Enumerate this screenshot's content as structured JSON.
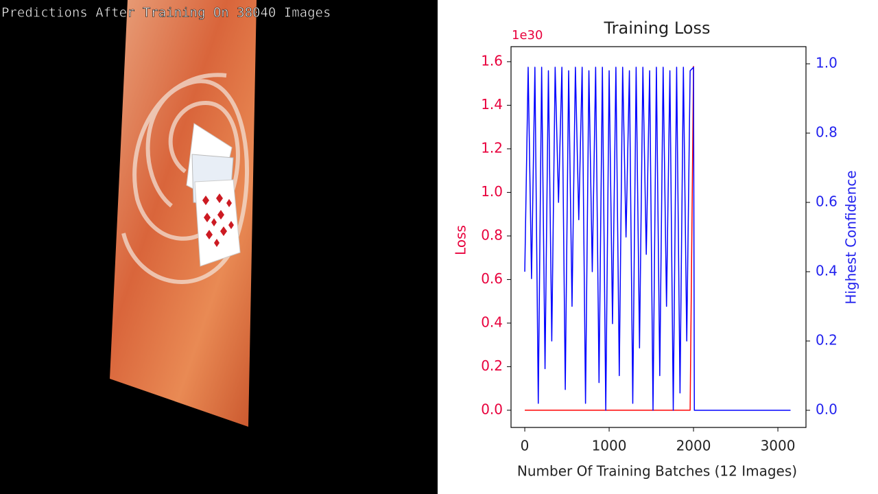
{
  "overlay_text": "Predictions After Training On 38040 Images",
  "chart_data": {
    "type": "line",
    "title": "Training Loss",
    "xlabel": "Number Of Training Batches (12 Images)",
    "ylabel": "Loss",
    "y2label": "Highest Confidence",
    "y_multiplier": "1e30",
    "x": [
      0,
      40,
      80,
      120,
      160,
      200,
      240,
      280,
      320,
      360,
      400,
      440,
      480,
      520,
      560,
      600,
      640,
      680,
      720,
      760,
      800,
      840,
      880,
      920,
      960,
      1000,
      1040,
      1080,
      1120,
      1160,
      1200,
      1240,
      1280,
      1320,
      1360,
      1400,
      1440,
      1480,
      1520,
      1560,
      1600,
      1640,
      1680,
      1720,
      1760,
      1800,
      1840,
      1880,
      1920,
      1960,
      2000,
      2010,
      3150
    ],
    "series": [
      {
        "name": "Loss",
        "color": "#ff0000",
        "axis": "y",
        "values": [
          0,
          0,
          0,
          0,
          0,
          0,
          0,
          0,
          0,
          0,
          0,
          0,
          0,
          0,
          0,
          0,
          0,
          0,
          0,
          0,
          0,
          0,
          0,
          0,
          0,
          0,
          0,
          0,
          0,
          0,
          0,
          0,
          0,
          0,
          0,
          0,
          0,
          0,
          0,
          0,
          0,
          0,
          0,
          0,
          0,
          0,
          0,
          0,
          0,
          0,
          1.58,
          null,
          null
        ]
      },
      {
        "name": "Highest Confidence",
        "color": "#0000ff",
        "axis": "y2",
        "values": [
          0.4,
          0.99,
          0.38,
          0.99,
          0.02,
          0.99,
          0.12,
          0.98,
          0.2,
          0.99,
          0.6,
          0.99,
          0.06,
          0.98,
          0.3,
          0.99,
          0.55,
          0.99,
          0.02,
          0.98,
          0.4,
          0.99,
          0.08,
          0.99,
          0.0,
          0.98,
          0.25,
          0.99,
          0.1,
          0.99,
          0.5,
          0.98,
          0.02,
          0.99,
          0.18,
          0.99,
          0.45,
          0.98,
          0.0,
          0.99,
          0.1,
          0.99,
          0.3,
          0.98,
          0.0,
          0.99,
          0.05,
          0.99,
          0.2,
          0.98,
          0.99,
          0.0,
          0.0
        ]
      }
    ],
    "xlim": [
      -163,
      3333
    ],
    "xticks": [
      0,
      1000,
      2000,
      3000
    ],
    "ylim": [
      -0.079,
      1.669
    ],
    "yticks": [
      {
        "value": 0,
        "label": "0.0"
      },
      0.2,
      0.4,
      0.6,
      0.8,
      {
        "value": 1,
        "label": "1.0"
      },
      1.2,
      1.4,
      1.6
    ],
    "y2lim": [
      -0.0495,
      1.0495
    ],
    "y2ticks": [
      {
        "value": 0,
        "label": "0.0"
      },
      0.2,
      0.4,
      0.6,
      0.8,
      {
        "value": 1,
        "label": "1.0"
      }
    ],
    "ytick_color": "#e8003c",
    "y2tick_color": "#2222ee"
  }
}
